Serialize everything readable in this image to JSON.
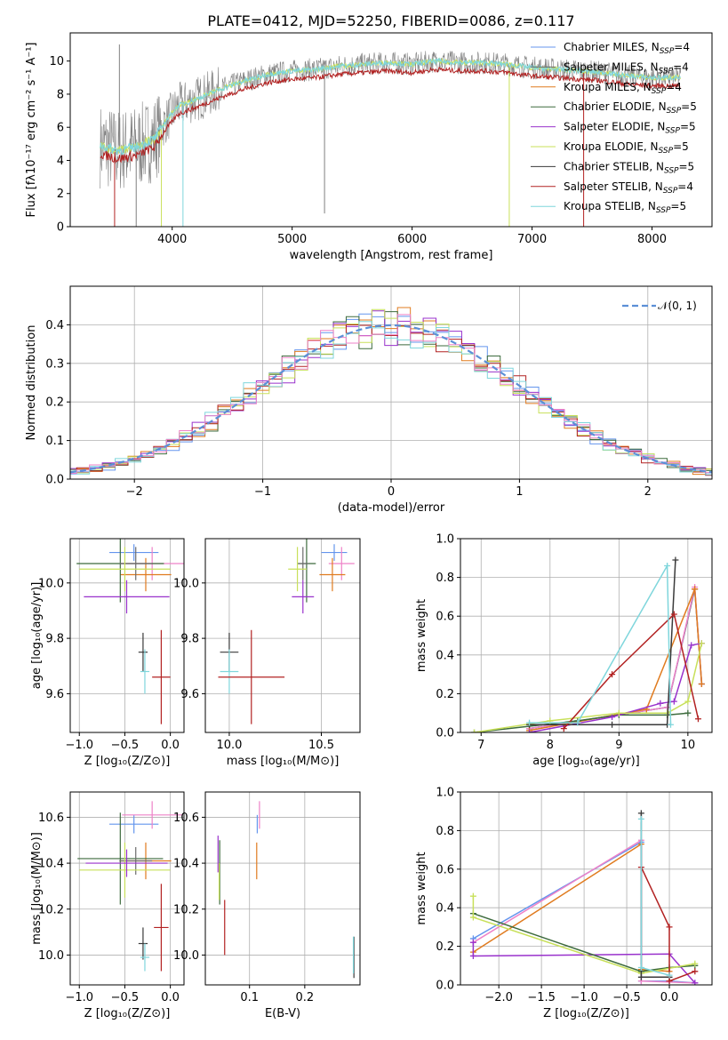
{
  "title": "PLATE=0412, MJD=52250, FIBERID=0086, z=0.117",
  "colors": {
    "Chabrier MILES": "#6495ed",
    "Salpeter MILES": "#6b6b6b",
    "Kroupa MILES": "#e07b1f",
    "Chabrier ELODIE": "#3d6b3d",
    "Salpeter ELODIE": "#9932cc",
    "Kroupa ELODIE": "#c8e05a",
    "Chabrier STELIB": "#3a3a3a",
    "Salpeter STELIB": "#b22222",
    "Kroupa STELIB": "#7fd6dc",
    "pink": "#ee82c8",
    "normal": "#5b8fd6"
  },
  "chart_data": [
    {
      "id": "spectrum",
      "type": "line",
      "xlabel": "wavelength [Angstrom, rest frame]",
      "ylabel": "Flux [fλ10⁻¹⁷ erg cm⁻² s⁻¹ A⁻¹]",
      "xlim": [
        3150,
        8500
      ],
      "ylim": [
        0,
        11.7
      ],
      "xticks": [
        4000,
        5000,
        6000,
        7000,
        8000
      ],
      "yticks": [
        0,
        2,
        4,
        6,
        8,
        10
      ],
      "grid": false,
      "legend_position": "right",
      "continuum": [
        [
          3400,
          4.9
        ],
        [
          3550,
          4.6
        ],
        [
          3700,
          4.8
        ],
        [
          3850,
          5.3
        ],
        [
          3950,
          6.4
        ],
        [
          4050,
          7.3
        ],
        [
          4200,
          7.7
        ],
        [
          4400,
          8.3
        ],
        [
          4600,
          8.8
        ],
        [
          4800,
          9.2
        ],
        [
          5000,
          9.4
        ],
        [
          5200,
          9.5
        ],
        [
          5400,
          9.7
        ],
        [
          5600,
          9.8
        ],
        [
          5800,
          9.9
        ],
        [
          6000,
          9.8
        ],
        [
          6200,
          10.0
        ],
        [
          6400,
          9.9
        ],
        [
          6600,
          9.9
        ],
        [
          6800,
          9.8
        ],
        [
          7000,
          9.6
        ],
        [
          7200,
          9.5
        ],
        [
          7400,
          9.4
        ],
        [
          7600,
          9.3
        ],
        [
          7800,
          9.1
        ],
        [
          8000,
          9.0
        ],
        [
          8200,
          9.0
        ]
      ],
      "legend": [
        {
          "label": "Chabrier MILES, N_SSP=4",
          "color_key": "Chabrier MILES"
        },
        {
          "label": "Salpeter MILES, N_SSP=4",
          "color_key": "Salpeter MILES"
        },
        {
          "label": "Kroupa MILES, N_SSP=4",
          "color_key": "Kroupa MILES"
        },
        {
          "label": "Chabrier ELODIE, N_SSP=5",
          "color_key": "Chabrier ELODIE"
        },
        {
          "label": "Salpeter ELODIE, N_SSP=5",
          "color_key": "Salpeter ELODIE"
        },
        {
          "label": "Kroupa ELODIE, N_SSP=5",
          "color_key": "Kroupa ELODIE"
        },
        {
          "label": "Chabrier STELIB, N_SSP=5",
          "color_key": "Chabrier STELIB"
        },
        {
          "label": "Salpeter STELIB, N_SSP=4",
          "color_key": "Salpeter STELIB"
        },
        {
          "label": "Kroupa STELIB, N_SSP=5",
          "color_key": "Kroupa STELIB"
        }
      ]
    },
    {
      "id": "residuals",
      "type": "line",
      "xlabel": "(data-model)/error",
      "ylabel": "Normed distribution",
      "xlim": [
        -2.5,
        2.5
      ],
      "ylim": [
        0,
        0.5
      ],
      "xticks": [
        -2,
        -1,
        0,
        1,
        2
      ],
      "yticks": [
        0.0,
        0.1,
        0.2,
        0.3,
        0.4
      ],
      "grid": true,
      "legend_position": "top-right",
      "legend_label": "𝒩(0, 1)",
      "bin_width": 0.1,
      "series_keys": [
        "Chabrier MILES",
        "Kroupa MILES",
        "Chabrier ELODIE",
        "Salpeter ELODIE",
        "Kroupa ELODIE",
        "Salpeter STELIB",
        "Kroupa STELIB",
        "pink"
      ]
    },
    {
      "id": "age_vs_Z",
      "type": "scatter",
      "xlabel": "Z [log₁₀(Z/Z⊙)]",
      "ylabel": "age  [log₁₀(age/yr)]",
      "xlim": [
        -1.1,
        0.15
      ],
      "ylim": [
        9.46,
        10.16
      ],
      "xticks": [
        -1.0,
        -0.5,
        0.0
      ],
      "yticks": [
        9.6,
        9.8,
        10.0
      ],
      "grid": true,
      "points": [
        {
          "key": "Chabrier MILES",
          "x": -0.4,
          "y": 10.11,
          "xerr": 0.27,
          "yerr": 0.03
        },
        {
          "key": "pink",
          "x": -0.2,
          "y": 10.07,
          "xerr": 0.35,
          "yerr": 0.06
        },
        {
          "key": "Kroupa MILES",
          "x": -0.27,
          "y": 10.03,
          "xerr": 0.28,
          "yerr": 0.06
        },
        {
          "key": "Chabrier ELODIE",
          "x": -0.55,
          "y": 10.07,
          "xerr": 0.48,
          "yerr": 0.14
        },
        {
          "key": "Salpeter MILES",
          "x": -0.38,
          "y": 10.07,
          "xerr": 0.18,
          "yerr": 0.06
        },
        {
          "key": "Kroupa ELODIE",
          "x": -0.5,
          "y": 10.05,
          "xerr": 0.5,
          "yerr": 0.08
        },
        {
          "key": "Salpeter ELODIE",
          "x": -0.48,
          "y": 9.95,
          "xerr": 0.47,
          "yerr": 0.06
        },
        {
          "key": "Chabrier STELIB",
          "x": -0.3,
          "y": 9.75,
          "xerr": 0.05,
          "yerr": 0.07
        },
        {
          "key": "Kroupa STELIB",
          "x": -0.28,
          "y": 9.68,
          "xerr": 0.05,
          "yerr": 0.08
        },
        {
          "key": "Salpeter STELIB",
          "x": -0.1,
          "y": 9.66,
          "xerr": 0.1,
          "yerr": 0.17
        }
      ]
    },
    {
      "id": "age_vs_mass",
      "type": "scatter",
      "xlabel": "mass [log₁₀(M/M⊙)]",
      "ylabel": "",
      "xlim": [
        9.87,
        10.71
      ],
      "ylim": [
        9.46,
        10.16
      ],
      "xticks": [
        10.0,
        10.5
      ],
      "yticks": [
        9.6,
        9.8,
        10.0
      ],
      "grid": true,
      "points": [
        {
          "key": "Chabrier MILES",
          "x": 10.57,
          "y": 10.11,
          "xerr": 0.07,
          "yerr": 0.03
        },
        {
          "key": "pink",
          "x": 10.61,
          "y": 10.07,
          "xerr": 0.07,
          "yerr": 0.06
        },
        {
          "key": "Kroupa MILES",
          "x": 10.56,
          "y": 10.03,
          "xerr": 0.07,
          "yerr": 0.06
        },
        {
          "key": "Chabrier ELODIE",
          "x": 10.42,
          "y": 10.07,
          "xerr": 0.05,
          "yerr": 0.14
        },
        {
          "key": "Salpeter MILES",
          "x": 10.4,
          "y": 10.07,
          "xerr": 0.03,
          "yerr": 0.06
        },
        {
          "key": "Kroupa ELODIE",
          "x": 10.37,
          "y": 10.05,
          "xerr": 0.05,
          "yerr": 0.08
        },
        {
          "key": "Salpeter ELODIE",
          "x": 10.4,
          "y": 9.95,
          "xerr": 0.06,
          "yerr": 0.06
        },
        {
          "key": "Chabrier STELIB",
          "x": 10.0,
          "y": 9.75,
          "xerr": 0.05,
          "yerr": 0.07
        },
        {
          "key": "Kroupa STELIB",
          "x": 10.0,
          "y": 9.68,
          "xerr": 0.05,
          "yerr": 0.08
        },
        {
          "key": "Salpeter STELIB",
          "x": 10.12,
          "y": 9.66,
          "xerr": 0.18,
          "yerr": 0.17
        }
      ]
    },
    {
      "id": "weight_vs_age",
      "type": "line",
      "xlabel": "age  [log₁₀(age/yr)]",
      "ylabel": "mass weight",
      "xlim": [
        6.7,
        10.35
      ],
      "ylim": [
        0,
        1.0
      ],
      "xticks": [
        7,
        8,
        9,
        10
      ],
      "yticks": [
        0.0,
        0.2,
        0.4,
        0.6,
        0.8,
        1.0
      ],
      "grid": true,
      "series": [
        {
          "key": "Chabrier MILES",
          "points": [
            [
              7.7,
              0.02
            ],
            [
              9.7,
              0.13
            ],
            [
              10.1,
              0.74
            ],
            [
              10.2,
              0.25
            ]
          ]
        },
        {
          "key": "Salpeter MILES",
          "points": [
            [
              7.7,
              0.02
            ],
            [
              9.7,
              0.13
            ],
            [
              10.1,
              0.74
            ],
            [
              10.2,
              0.25
            ]
          ]
        },
        {
          "key": "pink",
          "points": [
            [
              7.7,
              0.02
            ],
            [
              9.7,
              0.13
            ],
            [
              10.1,
              0.75
            ],
            [
              10.2,
              0.25
            ]
          ]
        },
        {
          "key": "Kroupa MILES",
          "points": [
            [
              7.7,
              0.01
            ],
            [
              9.4,
              0.12
            ],
            [
              10.1,
              0.74
            ],
            [
              10.2,
              0.25
            ]
          ]
        },
        {
          "key": "Chabrier ELODIE",
          "points": [
            [
              6.9,
              0.0
            ],
            [
              8.4,
              0.06
            ],
            [
              9.0,
              0.09
            ],
            [
              9.7,
              0.09
            ],
            [
              10.0,
              0.1
            ]
          ]
        },
        {
          "key": "Salpeter ELODIE",
          "points": [
            [
              7.7,
              0.0
            ],
            [
              8.9,
              0.08
            ],
            [
              9.6,
              0.15
            ],
            [
              9.8,
              0.16
            ],
            [
              10.05,
              0.45
            ],
            [
              10.2,
              0.46
            ]
          ]
        },
        {
          "key": "Kroupa ELODIE",
          "points": [
            [
              6.9,
              0.0
            ],
            [
              8.0,
              0.06
            ],
            [
              9.0,
              0.1
            ],
            [
              9.7,
              0.1
            ],
            [
              10.0,
              0.16
            ],
            [
              10.2,
              0.46
            ]
          ]
        },
        {
          "key": "Chabrier STELIB",
          "points": [
            [
              7.7,
              0.04
            ],
            [
              8.9,
              0.04
            ],
            [
              9.7,
              0.04
            ],
            [
              9.82,
              0.89
            ]
          ]
        },
        {
          "key": "Salpeter STELIB",
          "points": [
            [
              8.2,
              0.02
            ],
            [
              8.9,
              0.3
            ],
            [
              9.8,
              0.61
            ],
            [
              10.15,
              0.07
            ]
          ]
        },
        {
          "key": "Kroupa STELIB",
          "points": [
            [
              7.7,
              0.05
            ],
            [
              8.4,
              0.05
            ],
            [
              9.7,
              0.86
            ],
            [
              9.75,
              0.04
            ]
          ]
        }
      ]
    },
    {
      "id": "mass_vs_Z",
      "type": "scatter",
      "xlabel": "Z [log₁₀(Z/Z⊙)]",
      "ylabel": "mass [log₁₀(M/M⊙)]",
      "xlim": [
        -1.1,
        0.15
      ],
      "ylim": [
        9.87,
        10.71
      ],
      "xticks": [
        -1.0,
        -0.5,
        0.0
      ],
      "yticks": [
        10.0,
        10.2,
        10.4,
        10.6
      ],
      "grid": true,
      "points": [
        {
          "key": "Chabrier MILES",
          "x": -0.4,
          "y": 10.57,
          "xerr": 0.27,
          "yerr": 0.04
        },
        {
          "key": "pink",
          "x": -0.2,
          "y": 10.61,
          "xerr": 0.33,
          "yerr": 0.06
        },
        {
          "key": "Kroupa MILES",
          "x": -0.27,
          "y": 10.41,
          "xerr": 0.28,
          "yerr": 0.08
        },
        {
          "key": "Chabrier ELODIE",
          "x": -0.55,
          "y": 10.42,
          "xerr": 0.47,
          "yerr": 0.2
        },
        {
          "key": "Salpeter MILES",
          "x": -0.38,
          "y": 10.41,
          "xerr": 0.18,
          "yerr": 0.06
        },
        {
          "key": "Kroupa ELODIE",
          "x": -0.5,
          "y": 10.37,
          "xerr": 0.5,
          "yerr": 0.12
        },
        {
          "key": "Salpeter ELODIE",
          "x": -0.48,
          "y": 10.4,
          "xerr": 0.45,
          "yerr": 0.06
        },
        {
          "key": "Chabrier STELIB",
          "x": -0.3,
          "y": 10.05,
          "xerr": 0.05,
          "yerr": 0.07
        },
        {
          "key": "Kroupa STELIB",
          "x": -0.28,
          "y": 9.99,
          "xerr": 0.05,
          "yerr": 0.06
        },
        {
          "key": "Salpeter STELIB",
          "x": -0.1,
          "y": 10.12,
          "xerr": 0.08,
          "yerr": 0.19
        }
      ]
    },
    {
      "id": "mass_vs_EBV",
      "type": "scatter",
      "xlabel": "E(B-V)",
      "ylabel": "",
      "xlim": [
        0.02,
        0.3
      ],
      "ylim": [
        9.87,
        10.71
      ],
      "xticks": [
        0.1,
        0.2
      ],
      "yticks": [
        10.0,
        10.2,
        10.4,
        10.6
      ],
      "grid": true,
      "points": [
        {
          "key": "Chabrier MILES",
          "x": 0.114,
          "y": 10.57,
          "xerr": 0,
          "yerr": 0.04
        },
        {
          "key": "pink",
          "x": 0.118,
          "y": 10.61,
          "xerr": 0,
          "yerr": 0.06
        },
        {
          "key": "Kroupa MILES",
          "x": 0.113,
          "y": 10.41,
          "xerr": 0,
          "yerr": 0.08
        },
        {
          "key": "Chabrier ELODIE",
          "x": 0.046,
          "y": 10.36,
          "xerr": 0,
          "yerr": 0.14
        },
        {
          "key": "Salpeter ELODIE",
          "x": 0.043,
          "y": 10.44,
          "xerr": 0,
          "yerr": 0.08
        },
        {
          "key": "Kroupa ELODIE",
          "x": 0.045,
          "y": 10.32,
          "xerr": 0,
          "yerr": 0.08
        },
        {
          "key": "Salpeter STELIB",
          "x": 0.055,
          "y": 10.12,
          "xerr": 0,
          "yerr": 0.12
        },
        {
          "key": "Chabrier STELIB",
          "x": 0.289,
          "y": 9.99,
          "xerr": 0,
          "yerr": 0.09
        },
        {
          "key": "Kroupa STELIB",
          "x": 0.288,
          "y": 10.0,
          "xerr": 0,
          "yerr": 0.08
        }
      ]
    },
    {
      "id": "weight_vs_Z",
      "type": "line",
      "xlabel": "Z [log₁₀(Z/Z⊙)]",
      "ylabel": "mass weight",
      "xlim": [
        -2.45,
        0.5
      ],
      "ylim": [
        0,
        1.0
      ],
      "xticks": [
        -2.0,
        -1.5,
        -1.0,
        -0.5,
        0.0
      ],
      "yticks": [
        0.0,
        0.2,
        0.4,
        0.6,
        0.8,
        1.0
      ],
      "grid": true,
      "series": [
        {
          "key": "Chabrier MILES",
          "points": [
            [
              -2.3,
              0.24
            ],
            [
              -0.33,
              0.74
            ],
            [
              -0.33,
              0.02
            ],
            [
              0.0,
              0.02
            ],
            [
              0.3,
              0.01
            ]
          ]
        },
        {
          "key": "Kroupa MILES",
          "points": [
            [
              -2.3,
              0.17
            ],
            [
              -0.33,
              0.73
            ],
            [
              -0.33,
              0.08
            ],
            [
              0.0,
              0.07
            ]
          ]
        },
        {
          "key": "pink",
          "points": [
            [
              -2.3,
              0.22
            ],
            [
              -0.33,
              0.75
            ],
            [
              -0.33,
              0.02
            ],
            [
              0.3,
              0.01
            ]
          ]
        },
        {
          "key": "Salpeter ELODIE",
          "points": [
            [
              -2.3,
              0.22
            ],
            [
              -2.3,
              0.15
            ],
            [
              0.0,
              0.16
            ],
            [
              0.3,
              0.01
            ]
          ]
        },
        {
          "key": "Chabrier ELODIE",
          "points": [
            [
              -2.3,
              0.37
            ],
            [
              -0.33,
              0.07
            ],
            [
              0.0,
              0.09
            ],
            [
              0.3,
              0.1
            ]
          ]
        },
        {
          "key": "Kroupa ELODIE",
          "points": [
            [
              -2.3,
              0.46
            ],
            [
              -2.3,
              0.35
            ],
            [
              -0.33,
              0.06
            ],
            [
              0.3,
              0.11
            ]
          ]
        },
        {
          "key": "Chabrier STELIB",
          "points": [
            [
              -0.33,
              0.89
            ],
            [
              -0.33,
              0.04
            ],
            [
              0.0,
              0.04
            ]
          ]
        },
        {
          "key": "Salpeter STELIB",
          "points": [
            [
              -0.33,
              0.61
            ],
            [
              0.0,
              0.3
            ],
            [
              0.0,
              0.02
            ],
            [
              0.3,
              0.07
            ]
          ]
        },
        {
          "key": "Kroupa STELIB",
          "points": [
            [
              -0.33,
              0.86
            ],
            [
              -0.33,
              0.09
            ],
            [
              0.0,
              0.05
            ]
          ]
        }
      ]
    }
  ]
}
